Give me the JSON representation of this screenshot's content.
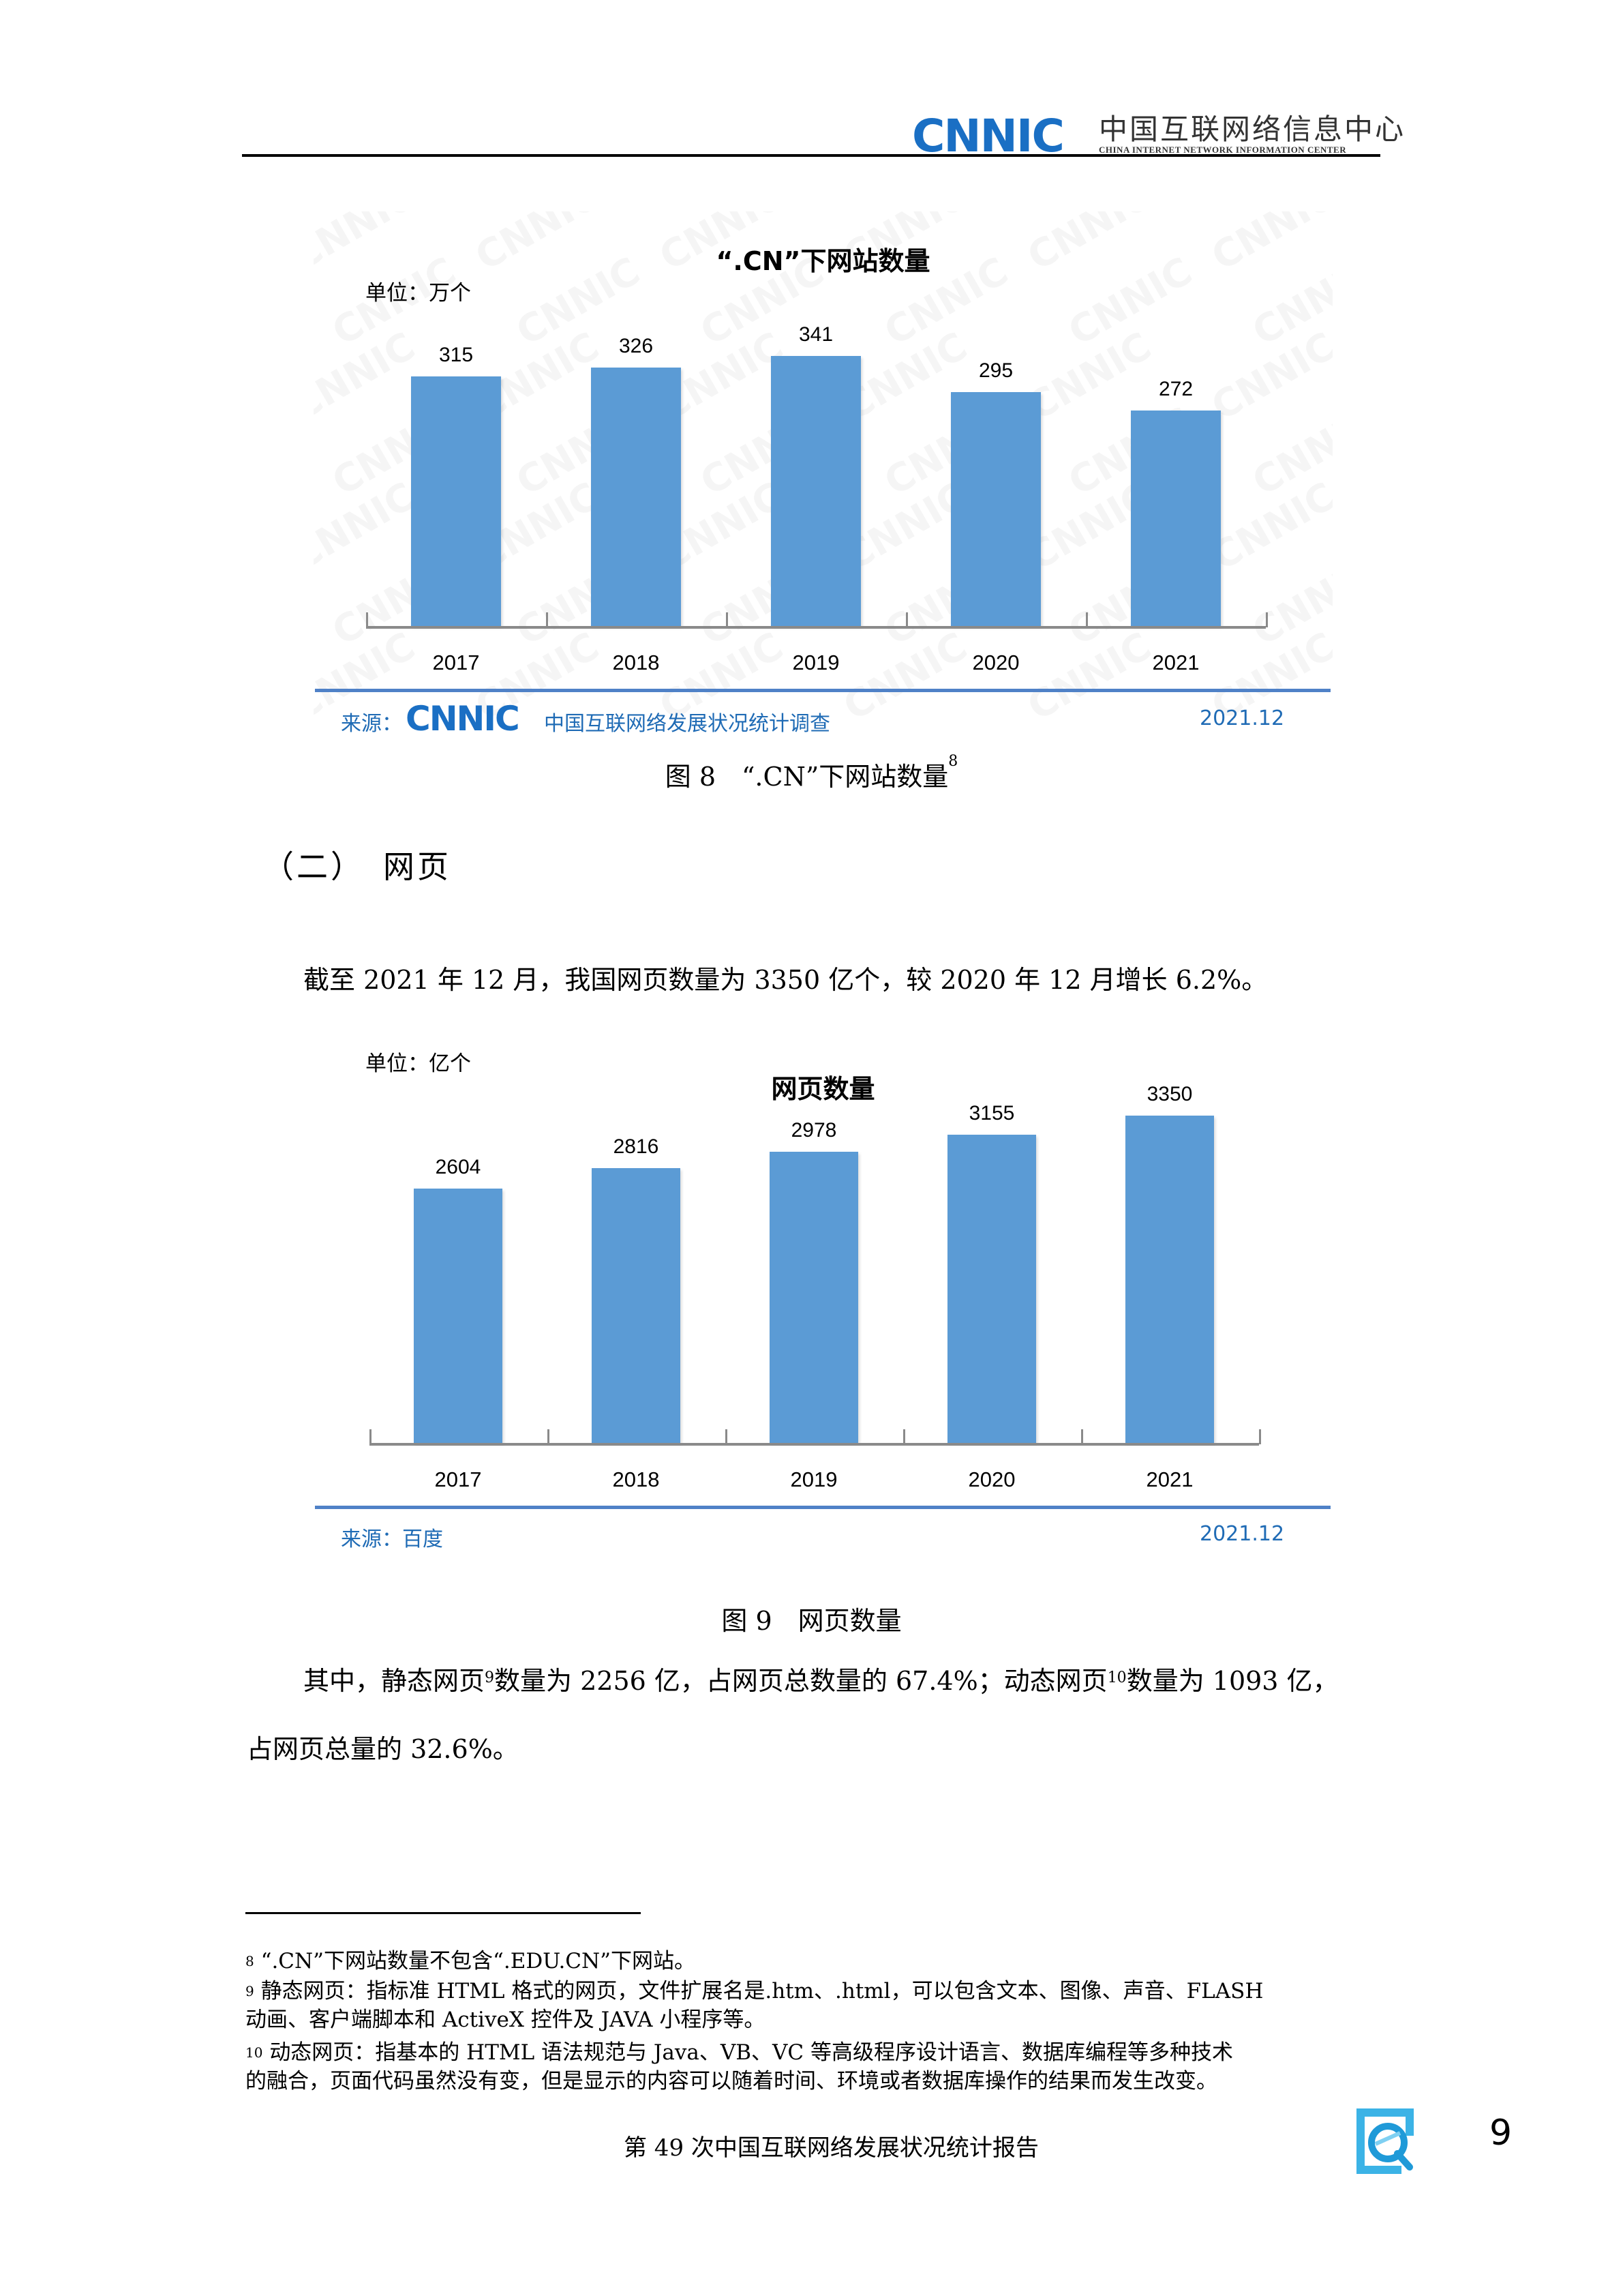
{
  "header": {
    "logo_text": "CNNIC",
    "org_name_cn": "中国互联网络信息中心",
    "org_name_en": "CHINA INTERNET NETWORK INFORMATION CENTER"
  },
  "figure8": {
    "title": "“.CN”下网站数量",
    "unit": "单位：万个",
    "source_label": "来源：",
    "source_logo": "CNNIC",
    "source_name": "中国互联网络发展状况统计调查",
    "date": "2021.12",
    "caption": "图 8　“.CN”下网站数量",
    "caption_sup": "8",
    "watermark": "CNNIC",
    "bar_color": "#5b9bd5"
  },
  "section": {
    "heading": "（二）　网页",
    "paragraph1": "截至 2021 年 12 月，我国网页数量为 3350 亿个，较 2020 年 12 月增长 6.2%。"
  },
  "figure9": {
    "title": "网页数量",
    "unit": "单位：亿个",
    "source_label": "来源：百度",
    "date": "2021.12",
    "caption": "图 9　网页数量",
    "bar_color": "#5b9bd5"
  },
  "paragraph2": {
    "part1": "其中，静态网页",
    "sup1": "9",
    "part2": "数量为 2256 亿，占网页总数量的 67.4%；动态网页",
    "sup2": "10",
    "part3": "数量为 1093 亿，",
    "line2": "占网页总量的 32.6%。"
  },
  "footnotes": [
    {
      "num": "8",
      "lines": [
        "“.CN”下网站数量不包含“.EDU.CN”下网站。"
      ]
    },
    {
      "num": "9",
      "lines": [
        "静态网页：指标准 HTML 格式的网页，文件扩展名是.htm、.html，可以包含文本、图像、声音、FLASH",
        "动画、客户端脚本和 ActiveX 控件及 JAVA 小程序等。"
      ]
    },
    {
      "num": "10",
      "lines": [
        "动态网页：指基本的 HTML 语法规范与 Java、VB、VC 等高级程序设计语言、数据库编程等多种技术",
        "的融合，页面代码虽然没有变，但是显示的内容可以随着时间、环境或者数据库操作的结果而发生改变。"
      ]
    }
  ],
  "footer": {
    "report_title": "第 49 次中国互联网络发展状况统计报告",
    "page_number": "9"
  },
  "chart_data": [
    {
      "type": "bar",
      "title": "“.CN”下网站数量",
      "categories": [
        "2017",
        "2018",
        "2019",
        "2020",
        "2021"
      ],
      "values": [
        315,
        326,
        341,
        295,
        272
      ],
      "xlabel": "",
      "ylabel": "单位：万个",
      "data_labels": [
        "315",
        "326",
        "341",
        "295",
        "272"
      ],
      "grid": false,
      "legend": null,
      "source": "来源：CNNIC 中国互联网络发展状况统计调查",
      "date": "2021.12"
    },
    {
      "type": "bar",
      "title": "网页数量",
      "categories": [
        "2017",
        "2018",
        "2019",
        "2020",
        "2021"
      ],
      "values": [
        2604,
        2816,
        2978,
        3155,
        3350
      ],
      "xlabel": "",
      "ylabel": "单位：亿个",
      "data_labels": [
        "2604",
        "2816",
        "2978",
        "3155",
        "3350"
      ],
      "grid": false,
      "legend": null,
      "source": "来源：百度",
      "date": "2021.12"
    }
  ]
}
